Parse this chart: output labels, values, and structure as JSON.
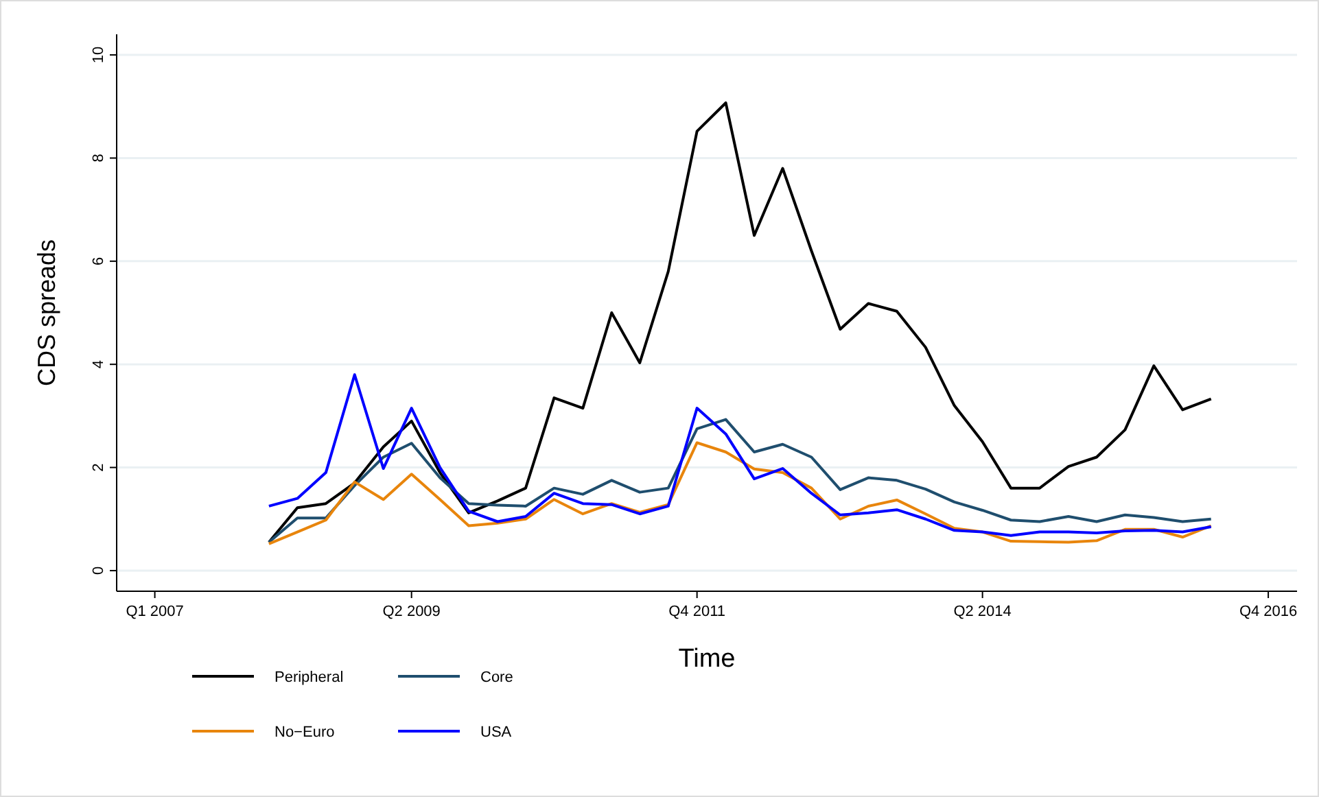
{
  "chart_data": {
    "type": "line",
    "xlabel": "Time",
    "ylabel": "CDS spreads",
    "x": [
      "2008-01",
      "2008-04",
      "2008-07",
      "2008-10",
      "2009-01",
      "2009-04",
      "2009-07",
      "2009-10",
      "2010-01",
      "2010-04",
      "2010-07",
      "2010-10",
      "2011-01",
      "2011-04",
      "2011-07",
      "2011-10",
      "2012-01",
      "2012-04",
      "2012-07",
      "2012-10",
      "2013-01",
      "2013-04",
      "2013-07",
      "2013-10",
      "2014-01",
      "2014-04",
      "2014-07",
      "2014-10",
      "2015-01",
      "2015-04",
      "2015-07",
      "2015-10",
      "2016-01",
      "2016-04"
    ],
    "series": [
      {
        "name": "Peripheral",
        "color": "#000000",
        "values": [
          0.55,
          1.22,
          1.3,
          1.7,
          2.4,
          2.9,
          1.9,
          1.12,
          1.35,
          1.6,
          3.35,
          3.15,
          5.0,
          4.03,
          5.8,
          8.52,
          9.07,
          6.5,
          7.8,
          6.2,
          4.68,
          5.18,
          5.03,
          4.33,
          3.2,
          2.5,
          1.6,
          1.6,
          2.02,
          2.2,
          2.73,
          3.97,
          3.12,
          3.33
        ]
      },
      {
        "name": "Core",
        "color": "#1f4e6e",
        "values": [
          0.55,
          1.02,
          1.02,
          1.65,
          2.2,
          2.47,
          1.8,
          1.3,
          1.27,
          1.25,
          1.6,
          1.48,
          1.75,
          1.52,
          1.6,
          2.75,
          2.93,
          2.3,
          2.45,
          2.2,
          1.57,
          1.8,
          1.75,
          1.58,
          1.33,
          1.17,
          0.98,
          0.95,
          1.05,
          0.95,
          1.08,
          1.03,
          0.95,
          1.0
        ]
      },
      {
        "name": "No−Euro",
        "color": "#e8850c",
        "values": [
          0.52,
          0.75,
          0.98,
          1.72,
          1.38,
          1.87,
          1.38,
          0.87,
          0.92,
          1.0,
          1.38,
          1.1,
          1.3,
          1.13,
          1.28,
          2.48,
          2.3,
          1.97,
          1.9,
          1.6,
          1.0,
          1.25,
          1.37,
          1.1,
          0.82,
          0.75,
          0.57,
          0.56,
          0.55,
          0.58,
          0.8,
          0.8,
          0.65,
          0.87
        ]
      },
      {
        "name": "USA",
        "color": "#0000ff",
        "values": [
          1.25,
          1.4,
          1.9,
          3.8,
          1.98,
          3.15,
          2.0,
          1.15,
          0.95,
          1.05,
          1.5,
          1.3,
          1.28,
          1.1,
          1.25,
          3.15,
          2.65,
          1.78,
          1.98,
          1.5,
          1.08,
          1.12,
          1.18,
          1.0,
          0.78,
          0.75,
          0.68,
          0.75,
          0.75,
          0.73,
          0.77,
          0.78,
          0.75,
          0.85
        ]
      }
    ],
    "xlim": [
      "2006-09",
      "2017-01"
    ],
    "xticks": [
      {
        "value": "2007-01",
        "label": "Q1 2007"
      },
      {
        "value": "2009-04",
        "label": "Q2 2009"
      },
      {
        "value": "2011-10",
        "label": "Q4 2011"
      },
      {
        "value": "2014-04",
        "label": "Q2 2014"
      },
      {
        "value": "2016-10",
        "label": "Q4 2016"
      }
    ],
    "ylim": [
      -0.4,
      10.4
    ],
    "yticks": [
      0,
      2,
      4,
      6,
      8,
      10
    ],
    "grid": "y",
    "legend": "bottom",
    "marker": "none",
    "line_style": "solid"
  }
}
